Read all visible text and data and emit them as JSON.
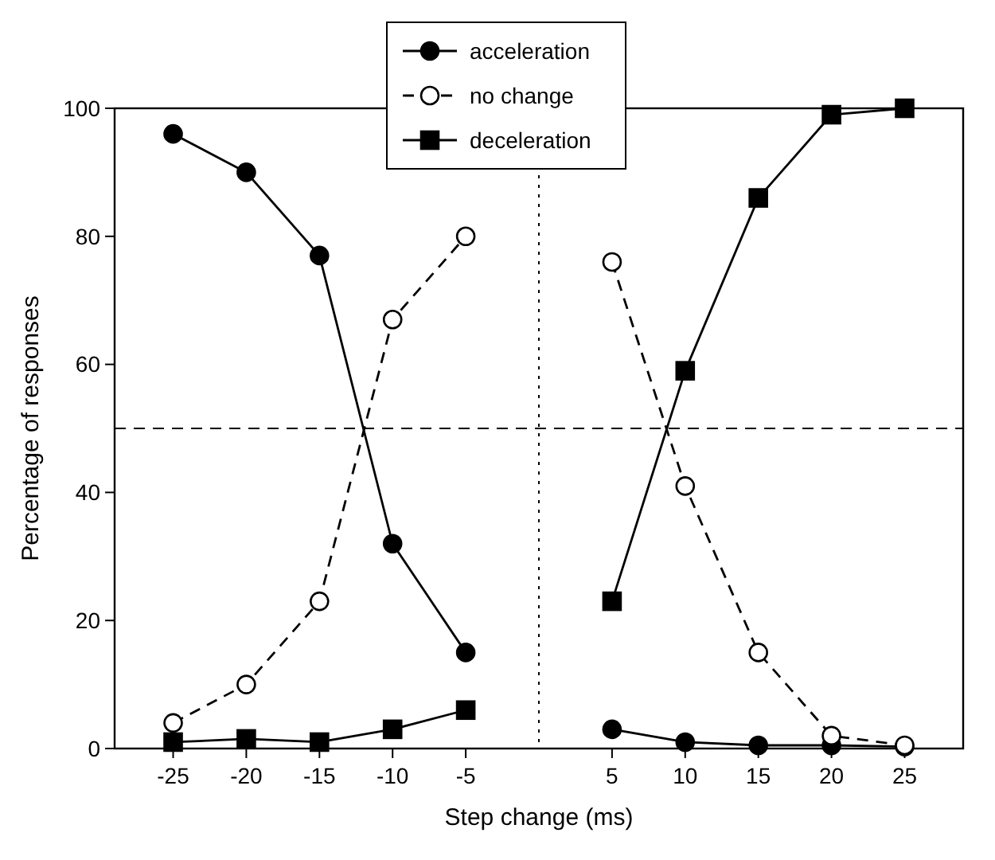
{
  "chart_data": {
    "type": "line",
    "xlabel": "Step change (ms)",
    "ylabel": "Percentage of responses",
    "x": [
      -25,
      -20,
      -15,
      -10,
      -5,
      0,
      5,
      10,
      15,
      20,
      25
    ],
    "xlim": [
      -29,
      29
    ],
    "xticks": [
      -25,
      -20,
      -15,
      -10,
      -5,
      5,
      10,
      15,
      20,
      25
    ],
    "ylim": [
      0,
      100
    ],
    "yticks": [
      0,
      20,
      40,
      60,
      80,
      100
    ],
    "grid": false,
    "legend": "top",
    "series": [
      {
        "name": "acceleration",
        "color": "#000000",
        "marker": "circle",
        "line_style": "solid",
        "values": [
          96,
          90,
          77,
          32,
          15,
          null,
          3,
          1,
          0.5,
          0.5,
          0.3
        ]
      },
      {
        "name": "no change",
        "color": "#000000",
        "marker": "circle",
        "line_style": "dashed",
        "values": [
          4,
          10,
          23,
          67,
          80,
          null,
          76,
          41,
          15,
          2,
          0.5
        ]
      },
      {
        "name": "deceleration",
        "color": "#000000",
        "marker": "square",
        "line_style": "solid",
        "values": [
          1,
          1.5,
          1,
          3,
          6,
          null,
          23,
          59,
          86,
          99,
          100
        ]
      }
    ],
    "ref_lines": [
      {
        "axis": "y",
        "value": 50,
        "line_style": "dashed"
      },
      {
        "axis": "x",
        "value": 0,
        "line_style": "dotted"
      }
    ]
  }
}
